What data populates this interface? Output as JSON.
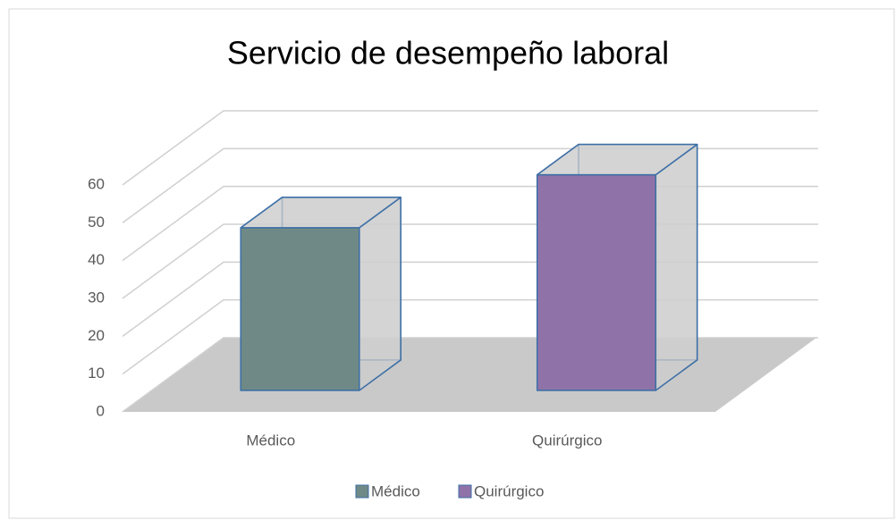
{
  "chart_data": {
    "type": "bar3d",
    "title": "Servicio de desempeño laboral",
    "categories": [
      "Médico",
      "Quirúrgico"
    ],
    "values": [
      43,
      57
    ],
    "colors": [
      "#6f8a86",
      "#8f73a8"
    ],
    "ylim": [
      0,
      60
    ],
    "yticks": [
      0,
      10,
      20,
      30,
      40,
      50,
      60
    ],
    "grid": true,
    "legend": "bottom"
  }
}
